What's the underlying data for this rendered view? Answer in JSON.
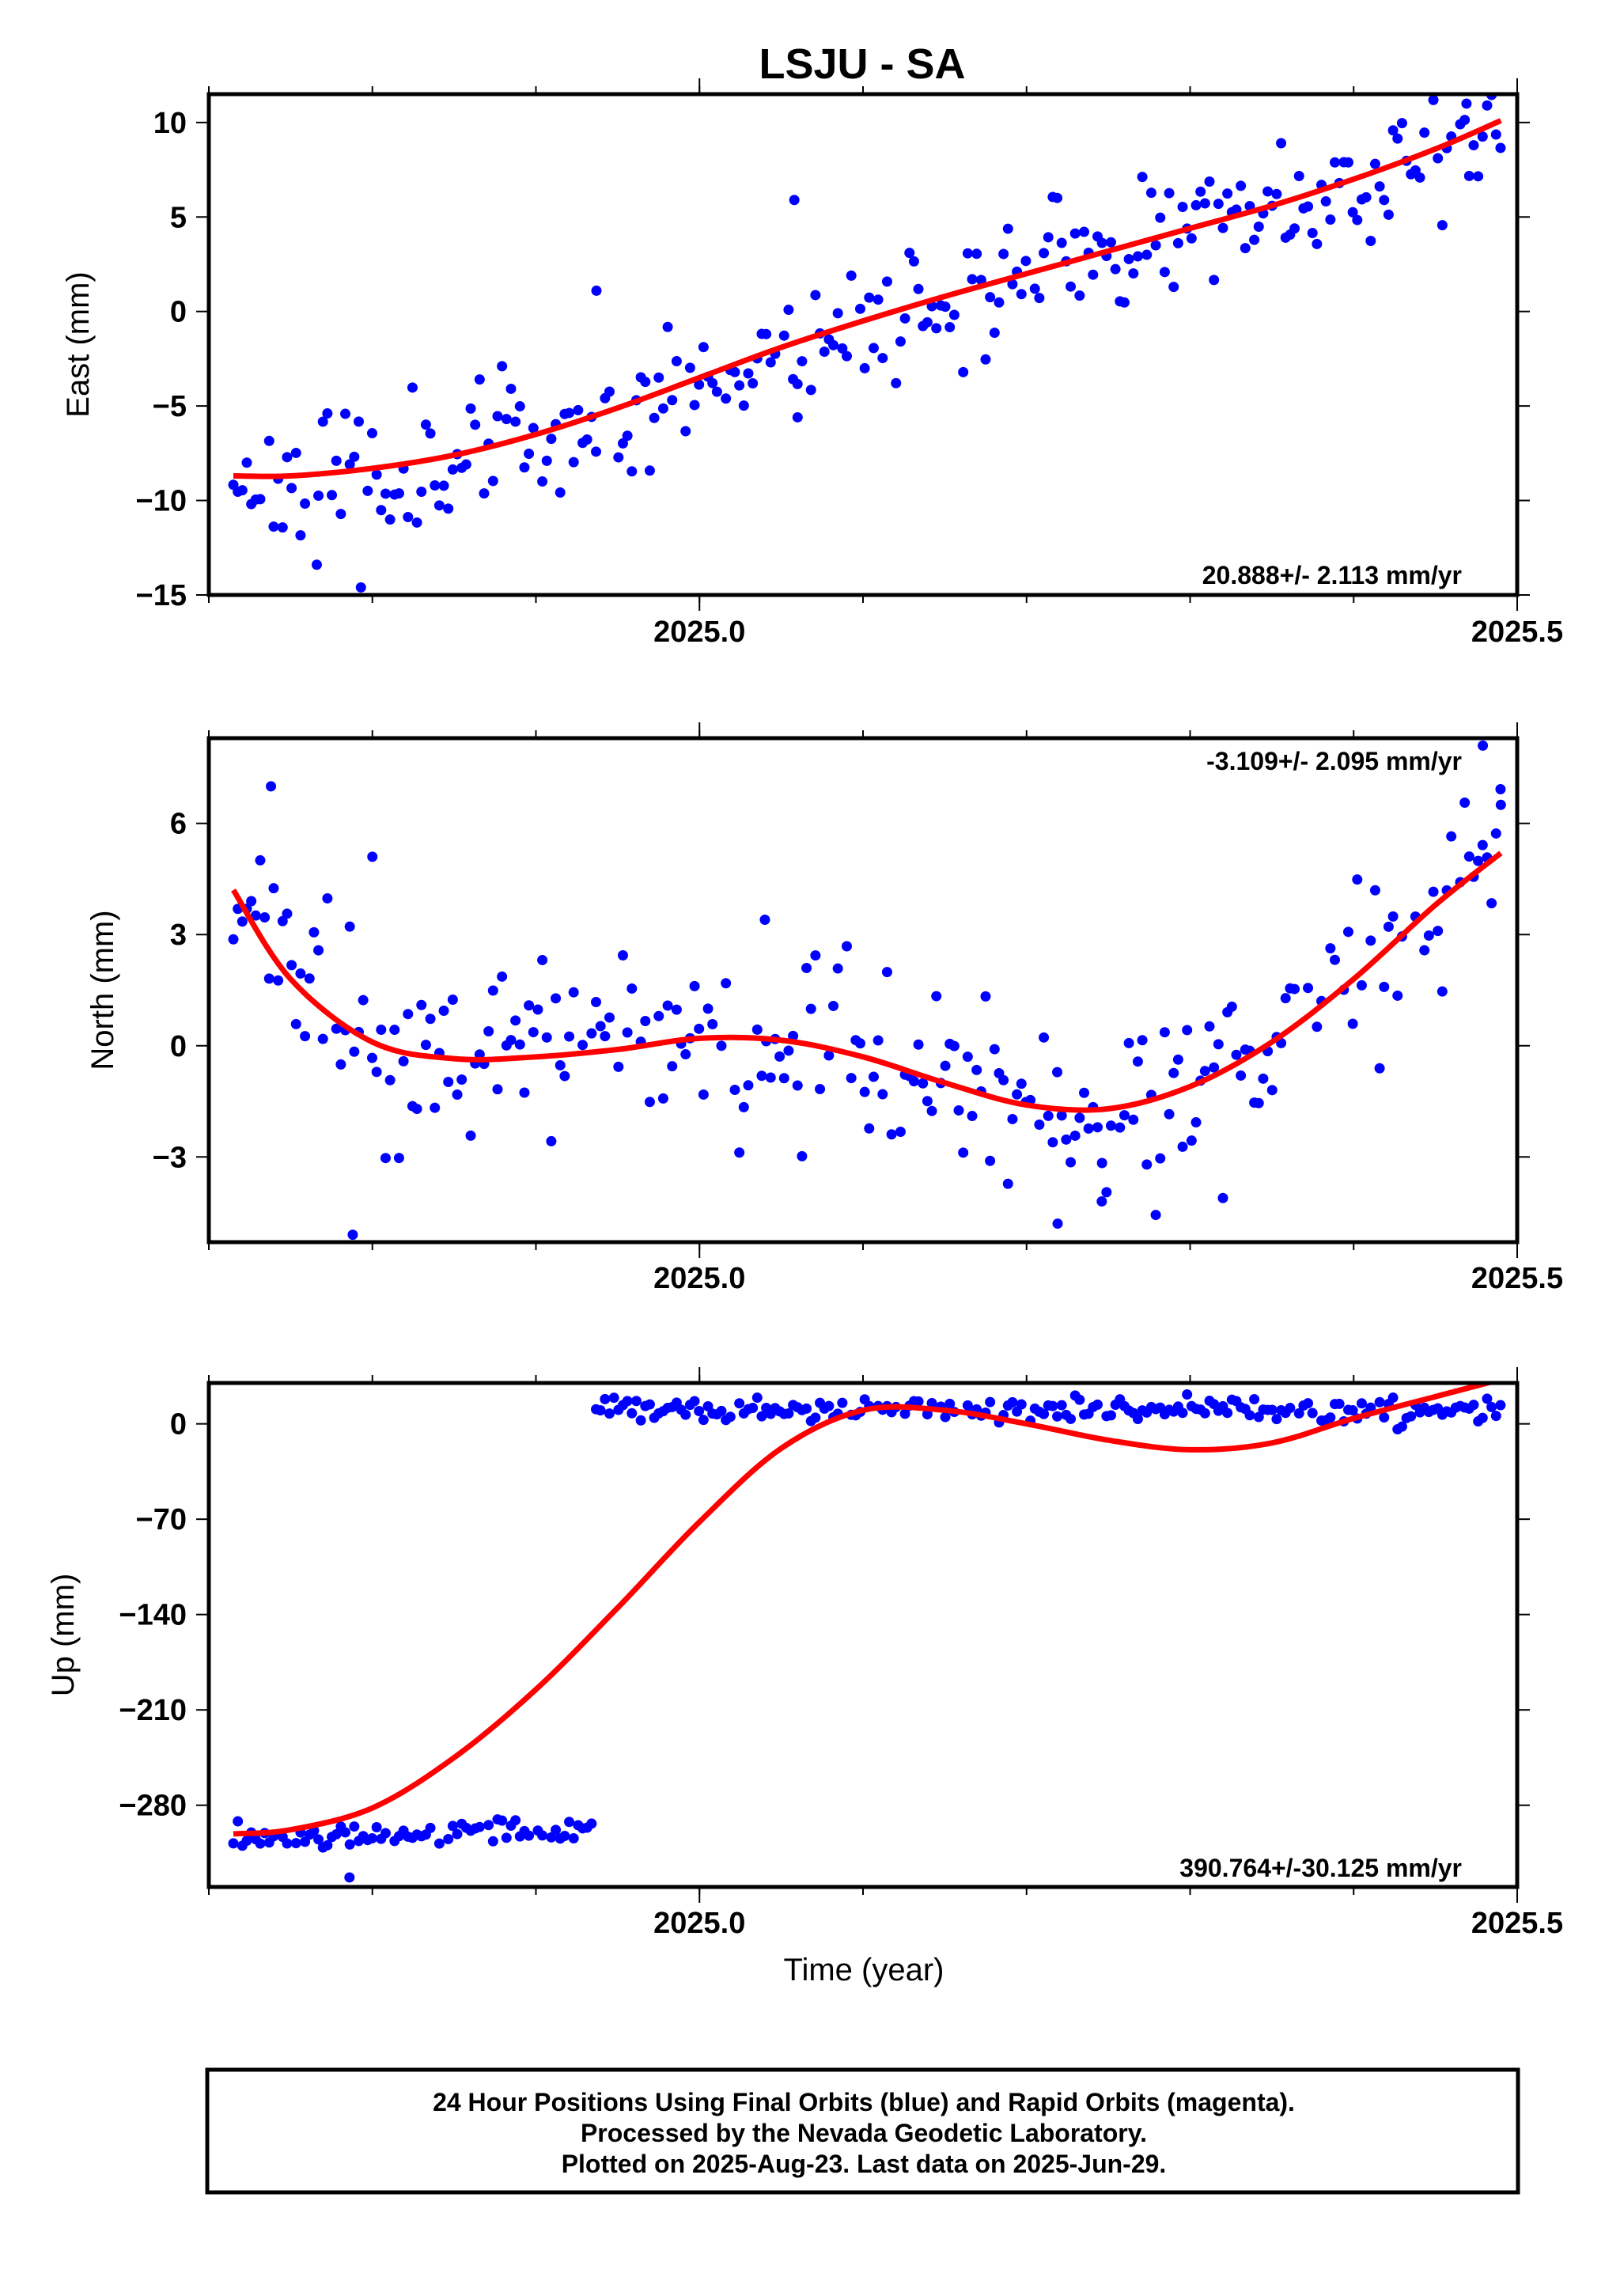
{
  "title": "LSJU - SA",
  "colors": {
    "points": "#0000ff",
    "fit": "#ff0000",
    "frame": "#000000"
  },
  "x_axis_label": "Time (year)",
  "footer": {
    "line1": "24 Hour Positions Using Final Orbits (blue) and Rapid Orbits (magenta).",
    "line2": "Processed by the Nevada Geodetic Laboratory.",
    "line3": "Plotted on 2025-Aug-23. Last data on 2025-Jun-29."
  },
  "chart_data": [
    {
      "type": "scatter",
      "ylabel": "East (mm)",
      "rate_label": "20.888+/- 2.113 mm/yr",
      "xlim": [
        2024.7,
        2025.5
      ],
      "ylim": [
        -15,
        11.5
      ],
      "x_ticks": [
        2025.0,
        2025.5
      ],
      "x_tick_labels": [
        "2025.0",
        "2025.5"
      ],
      "y_ticks": [
        10,
        5,
        0,
        -5,
        -10,
        -15
      ],
      "y_tick_labels": [
        "10",
        "5",
        "0",
        "−5",
        "−10",
        "−15"
      ],
      "fit": {
        "x": [
          2024.715,
          2024.75,
          2024.8,
          2024.85,
          2024.9,
          2024.95,
          2025.0,
          2025.05,
          2025.1,
          2025.15,
          2025.2,
          2025.25,
          2025.3,
          2025.35,
          2025.4,
          2025.45,
          2025.49
        ],
        "y": [
          -8.7,
          -8.7,
          -8.3,
          -7.6,
          -6.5,
          -5.1,
          -3.5,
          -1.9,
          -0.5,
          0.8,
          2.0,
          3.2,
          4.4,
          5.6,
          7.0,
          8.6,
          10.1
        ]
      },
      "trend": {
        "start": -8.5,
        "slope": 23.8,
        "noise": 1.7,
        "seed": 11
      },
      "points": [
        {
          "x": 2024.793,
          "y": -14.6
        },
        {
          "x": 2024.766,
          "y": -13.4
        },
        {
          "x": 2025.058,
          "y": 5.9
        },
        {
          "x": 2025.06,
          "y": -5.6
        },
        {
          "x": 2024.937,
          "y": 1.1
        },
        {
          "x": 2025.469,
          "y": 11.0
        }
      ]
    },
    {
      "type": "scatter",
      "ylabel": "North (mm)",
      "rate_label": "-3.109+/- 2.095 mm/yr",
      "xlim": [
        2024.7,
        2025.5
      ],
      "ylim": [
        -5.3,
        8.3
      ],
      "x_ticks": [
        2025.0,
        2025.5
      ],
      "x_tick_labels": [
        "2025.0",
        "2025.5"
      ],
      "y_ticks": [
        6,
        3,
        0,
        -3
      ],
      "y_tick_labels": [
        "6",
        "3",
        "0",
        "−3"
      ],
      "fit": {
        "x": [
          2024.715,
          2024.75,
          2024.8,
          2024.85,
          2024.9,
          2024.95,
          2025.0,
          2025.05,
          2025.1,
          2025.15,
          2025.2,
          2025.25,
          2025.3,
          2025.35,
          2025.4,
          2025.45,
          2025.49
        ],
        "y": [
          4.2,
          1.8,
          0.1,
          -0.35,
          -0.3,
          -0.1,
          0.2,
          0.15,
          -0.3,
          -1.0,
          -1.6,
          -1.7,
          -1.1,
          0.1,
          1.8,
          3.8,
          5.2
        ]
      },
      "trend": {
        "noise": 1.2,
        "seed": 23
      },
      "points": [
        {
          "x": 2024.738,
          "y": 7.0
        },
        {
          "x": 2024.8,
          "y": 5.1
        },
        {
          "x": 2024.788,
          "y": -5.1
        },
        {
          "x": 2025.219,
          "y": -4.8
        },
        {
          "x": 2025.246,
          "y": -4.2
        },
        {
          "x": 2025.479,
          "y": 8.1
        },
        {
          "x": 2025.49,
          "y": 6.5
        },
        {
          "x": 2025.04,
          "y": 3.4
        }
      ]
    },
    {
      "type": "scatter",
      "ylabel": "Up (mm)",
      "rate_label": "390.764+/-30.125 mm/yr",
      "xlim": [
        2024.7,
        2025.5
      ],
      "ylim": [
        -340,
        30
      ],
      "x_ticks": [
        2025.0,
        2025.5
      ],
      "x_tick_labels": [
        "2025.0",
        "2025.5"
      ],
      "y_ticks": [
        0,
        -70,
        -140,
        -210,
        -280
      ],
      "y_tick_labels": [
        "0",
        "−70",
        "−140",
        "−210",
        "−280"
      ],
      "fit": {
        "x": [
          2024.715,
          2024.75,
          2024.8,
          2024.85,
          2024.9,
          2024.95,
          2025.0,
          2025.05,
          2025.1,
          2025.15,
          2025.2,
          2025.25,
          2025.3,
          2025.35,
          2025.4,
          2025.45,
          2025.485
        ],
        "y": [
          -301,
          -298,
          -282,
          -245,
          -195,
          -135,
          -72,
          -18,
          10,
          10,
          0,
          -12,
          -19,
          -14,
          4,
          20,
          31
        ]
      },
      "trend": {
        "noise": 4.5,
        "seed": 37,
        "jump_x": 2024.935,
        "before": -303,
        "after": 10
      },
      "points": [
        {
          "x": 2024.786,
          "y": -333
        }
      ]
    }
  ]
}
